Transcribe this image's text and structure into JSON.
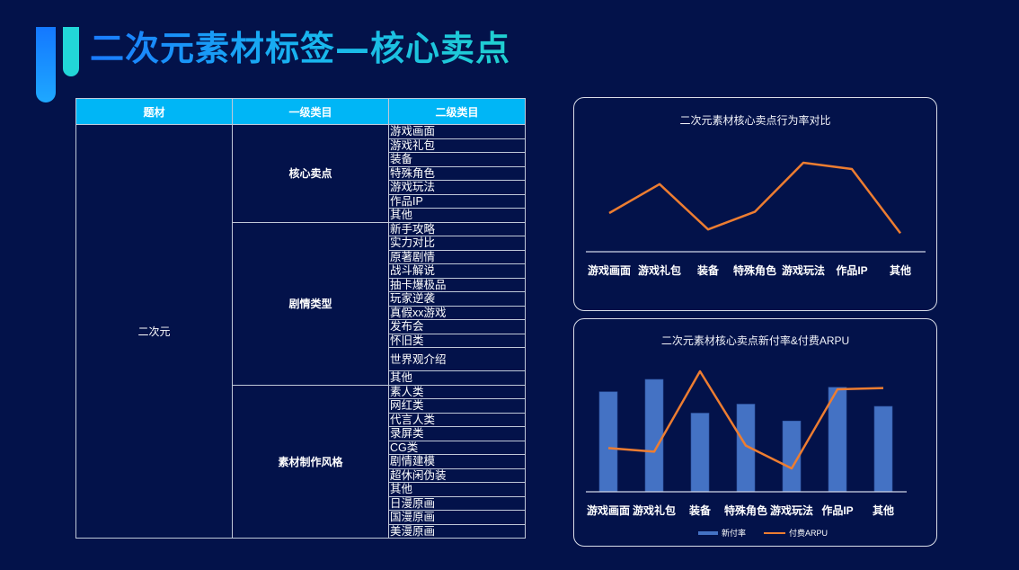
{
  "page": {
    "title": "二次元素材标签—核心卖点"
  },
  "table": {
    "headers": [
      "题材",
      "一级类目",
      "二级类目"
    ],
    "subject": "二次元",
    "groups": [
      {
        "label": "核心卖点",
        "items": [
          "游戏画面",
          "游戏礼包",
          "装备",
          "特殊角色",
          "游戏玩法",
          "作品IP",
          "其他"
        ]
      },
      {
        "label": "剧情类型",
        "items": [
          "新手攻略",
          "实力对比",
          "原著剧情",
          "战斗解说",
          "抽卡爆极品",
          "玩家逆袭",
          "真假xx游戏",
          "发布会",
          "怀旧类",
          "世界观介绍",
          "其他"
        ]
      },
      {
        "label": "素材制作风格",
        "items": [
          "素人类",
          "网红类",
          "代言人类",
          "录屏类",
          "CG类",
          "剧情建模",
          "超休闲伪装",
          "其他",
          "日漫原画",
          "国漫原画",
          "美漫原画"
        ]
      }
    ]
  },
  "colors": {
    "background": "#03124a",
    "header": "#00b6f6",
    "bar": "#4472c4",
    "line": "#ed7d31"
  },
  "chart_data": [
    {
      "type": "line",
      "title": "二次元素材核心卖点行为率对比",
      "categories": [
        "游戏画面",
        "游戏礼包",
        "装备",
        "特殊角色",
        "游戏玩法",
        "作品IP",
        "其他"
      ],
      "series": [
        {
          "name": "行为率",
          "values": [
            60,
            83,
            47,
            61,
            100,
            95,
            44
          ]
        }
      ],
      "xlabel": "",
      "ylabel": "",
      "grid": false,
      "legend": "none",
      "note": "relative values estimated from pixel positions; no y-axis shown"
    },
    {
      "type": "bar",
      "title": "二次元素材核心卖点新付率&付费ARPU",
      "categories": [
        "游戏画面",
        "游戏礼包",
        "装备",
        "特殊角色",
        "游戏玩法",
        "作品IP",
        "其他"
      ],
      "series": [
        {
          "name": "新付率",
          "type": "bar",
          "values": [
            89,
            100,
            70,
            78,
            63,
            93,
            76
          ]
        },
        {
          "name": "付费ARPU",
          "type": "line",
          "values": [
            36,
            33,
            100,
            38,
            19,
            85,
            86
          ]
        }
      ],
      "legend": "bottom",
      "grid": false,
      "note": "relative values estimated from pixel positions; no y-axis shown"
    }
  ],
  "legend2": {
    "bar_label": "新付率",
    "line_label": "付费ARPU"
  }
}
